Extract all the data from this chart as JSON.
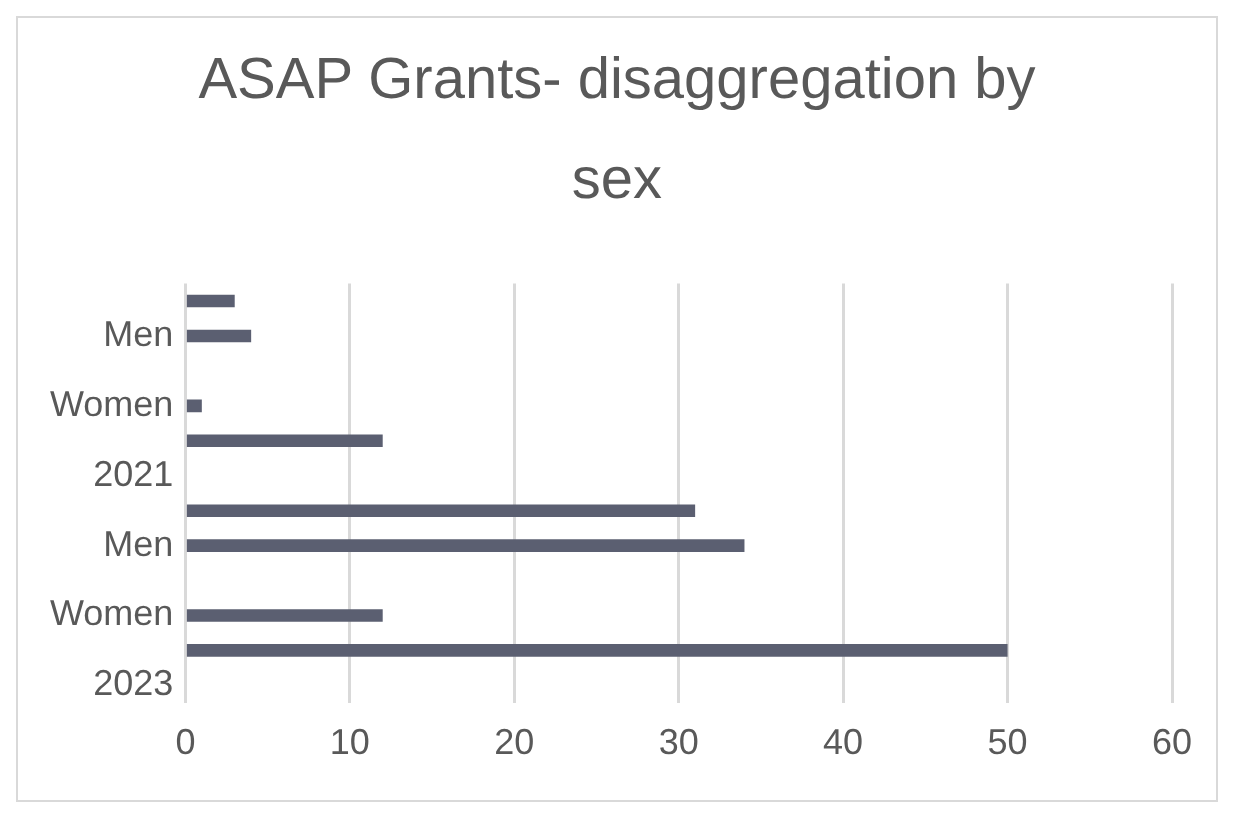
{
  "chart_data": {
    "type": "bar",
    "orientation": "horizontal",
    "title": "ASAP Grants- disaggregation by sex",
    "categories": [
      null,
      "Men",
      null,
      "Women",
      null,
      "2021",
      null,
      "Men",
      null,
      "Women",
      null,
      "2023"
    ],
    "values": [
      3,
      4,
      null,
      1,
      12,
      null,
      31,
      34,
      null,
      12,
      50,
      null
    ],
    "color": "#5b5f71",
    "xlim": [
      0,
      60
    ],
    "xticks": [
      0,
      10,
      20,
      30,
      40,
      50,
      60
    ],
    "grid": "x",
    "legend": false
  }
}
